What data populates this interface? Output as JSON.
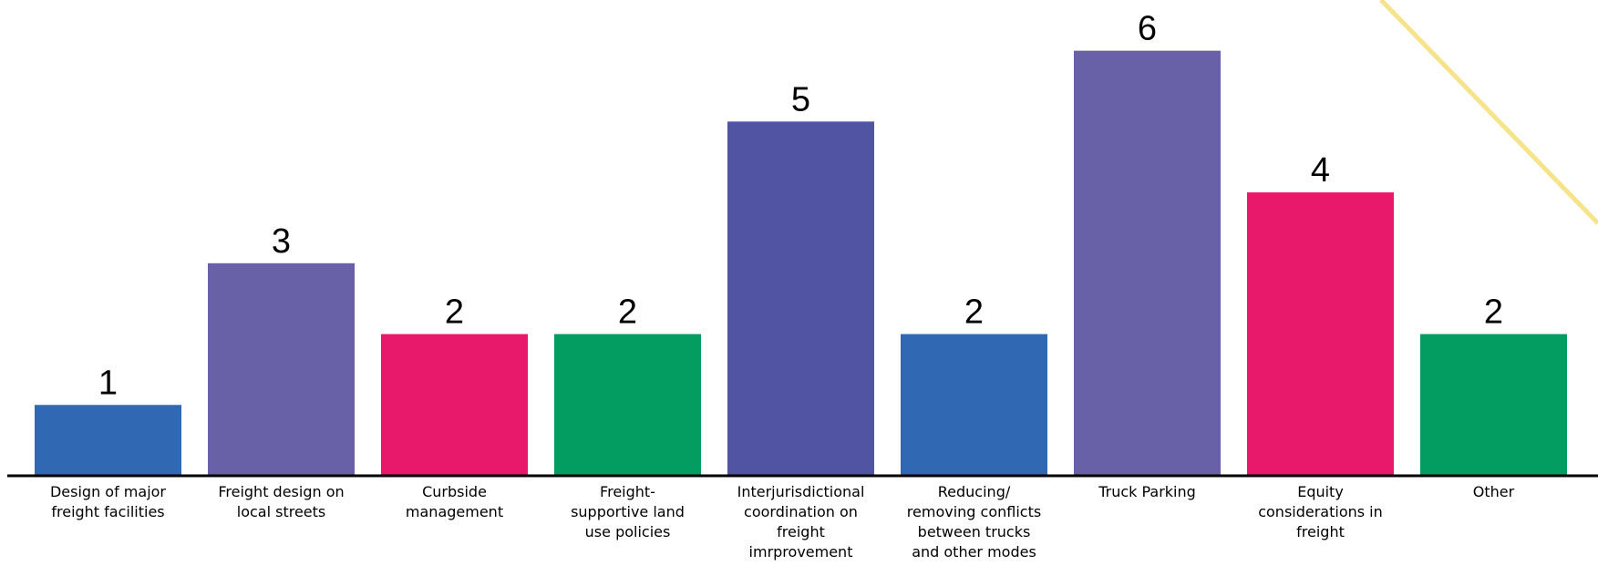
{
  "chart_data": {
    "type": "bar",
    "title": "",
    "xlabel": "",
    "ylabel": "",
    "ylim": [
      0,
      6.6
    ],
    "grid": false,
    "legend": "none",
    "categories": [
      [
        "Design of major",
        "freight facilities"
      ],
      [
        "Freight design on",
        "local streets"
      ],
      [
        "Curbside",
        "management"
      ],
      [
        "Freight-",
        "supportive land",
        "use policies"
      ],
      [
        "Interjurisdictional",
        "coordination on",
        "freight",
        "imrprovement"
      ],
      [
        "Reducing/",
        "removing conflicts",
        "between trucks",
        "and other modes"
      ],
      [
        "Truck Parking"
      ],
      [
        "Equity",
        "considerations in",
        "freight"
      ],
      [
        "Other"
      ]
    ],
    "values": [
      1,
      3,
      2,
      2,
      5,
      2,
      6,
      4,
      2
    ],
    "data_labels": [
      "1",
      "3",
      "2",
      "2",
      "5",
      "2",
      "6",
      "4",
      "2"
    ],
    "colors": [
      "#3168b3",
      "#6961a8",
      "#e8196a",
      "#049d61",
      "#5153a3",
      "#3168b3",
      "#6961a8",
      "#e8196a",
      "#049d61"
    ]
  },
  "decoration": {
    "accent_line_color": "#f6e48c"
  }
}
